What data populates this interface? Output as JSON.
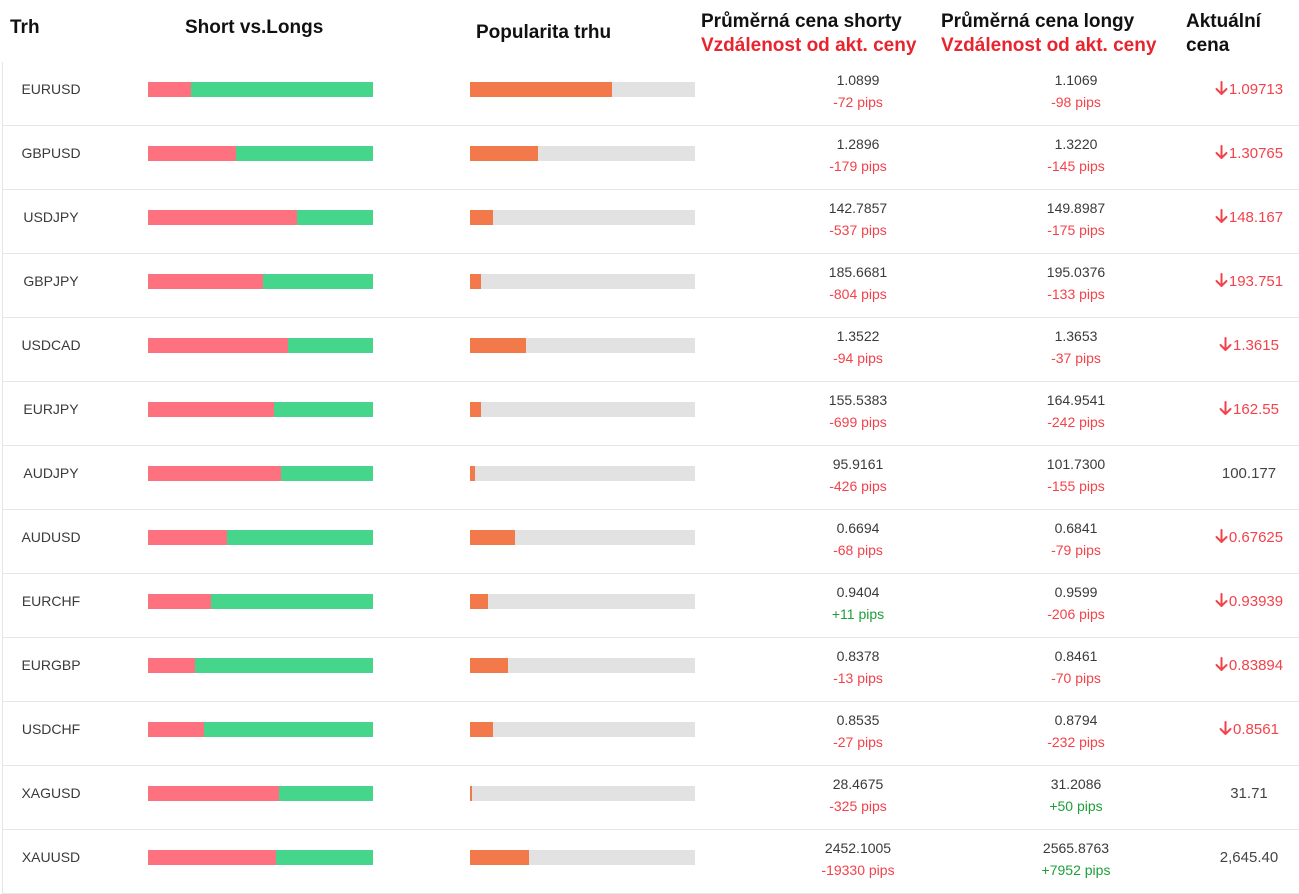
{
  "header": {
    "col_market": "Trh",
    "col_svl": "Short vs.Longs",
    "col_popularity": "Popularita trhu",
    "col_short_avg": "Průměrná cena shorty",
    "col_short_dist": "Vzdálenost od akt. ceny",
    "col_long_avg": "Průměrná cena longy",
    "col_long_dist": "Vzdálenost od akt. ceny",
    "col_price_line1": "Aktuální",
    "col_price_line2": "cena"
  },
  "colors": {
    "short": "#fe727f",
    "long": "#45d68c",
    "popularity": "#f1794a",
    "track": "#e2e2e2",
    "down": "#f3424a",
    "up": "#1d9f3a"
  },
  "rows": [
    {
      "pair": "EURUSD",
      "short_pct": 0.19,
      "popularity": 0.63,
      "short_avg": "1.0899",
      "short_dist": "-72 pips",
      "short_dist_sign": "neg",
      "long_avg": "1.1069",
      "long_dist": "-98 pips",
      "long_dist_sign": "neg",
      "price": "1.09713",
      "trend": "down"
    },
    {
      "pair": "GBPUSD",
      "short_pct": 0.39,
      "popularity": 0.3,
      "short_avg": "1.2896",
      "short_dist": "-179 pips",
      "short_dist_sign": "neg",
      "long_avg": "1.3220",
      "long_dist": "-145 pips",
      "long_dist_sign": "neg",
      "price": "1.30765",
      "trend": "down"
    },
    {
      "pair": "USDJPY",
      "short_pct": 0.66,
      "popularity": 0.1,
      "short_avg": "142.7857",
      "short_dist": "-537 pips",
      "short_dist_sign": "neg",
      "long_avg": "149.8987",
      "long_dist": "-175 pips",
      "long_dist_sign": "neg",
      "price": "148.167",
      "trend": "down"
    },
    {
      "pair": "GBPJPY",
      "short_pct": 0.51,
      "popularity": 0.05,
      "short_avg": "185.6681",
      "short_dist": "-804 pips",
      "short_dist_sign": "neg",
      "long_avg": "195.0376",
      "long_dist": "-133 pips",
      "long_dist_sign": "neg",
      "price": "193.751",
      "trend": "down"
    },
    {
      "pair": "USDCAD",
      "short_pct": 0.62,
      "popularity": 0.25,
      "short_avg": "1.3522",
      "short_dist": "-94 pips",
      "short_dist_sign": "neg",
      "long_avg": "1.3653",
      "long_dist": "-37 pips",
      "long_dist_sign": "neg",
      "price": "1.3615",
      "trend": "down"
    },
    {
      "pair": "EURJPY",
      "short_pct": 0.56,
      "popularity": 0.05,
      "short_avg": "155.5383",
      "short_dist": "-699 pips",
      "short_dist_sign": "neg",
      "long_avg": "164.9541",
      "long_dist": "-242 pips",
      "long_dist_sign": "neg",
      "price": "162.55",
      "trend": "down"
    },
    {
      "pair": "AUDJPY",
      "short_pct": 0.59,
      "popularity": 0.02,
      "short_avg": "95.9161",
      "short_dist": "-426 pips",
      "short_dist_sign": "neg",
      "long_avg": "101.7300",
      "long_dist": "-155 pips",
      "long_dist_sign": "neg",
      "price": "100.177",
      "trend": "none"
    },
    {
      "pair": "AUDUSD",
      "short_pct": 0.35,
      "popularity": 0.2,
      "short_avg": "0.6694",
      "short_dist": "-68 pips",
      "short_dist_sign": "neg",
      "long_avg": "0.6841",
      "long_dist": "-79 pips",
      "long_dist_sign": "neg",
      "price": "0.67625",
      "trend": "down"
    },
    {
      "pair": "EURCHF",
      "short_pct": 0.28,
      "popularity": 0.08,
      "short_avg": "0.9404",
      "short_dist": "+11 pips",
      "short_dist_sign": "pos",
      "long_avg": "0.9599",
      "long_dist": "-206 pips",
      "long_dist_sign": "neg",
      "price": "0.93939",
      "trend": "down"
    },
    {
      "pair": "EURGBP",
      "short_pct": 0.21,
      "popularity": 0.17,
      "short_avg": "0.8378",
      "short_dist": "-13 pips",
      "short_dist_sign": "neg",
      "long_avg": "0.8461",
      "long_dist": "-70 pips",
      "long_dist_sign": "neg",
      "price": "0.83894",
      "trend": "down"
    },
    {
      "pair": "USDCHF",
      "short_pct": 0.25,
      "popularity": 0.1,
      "short_avg": "0.8535",
      "short_dist": "-27 pips",
      "short_dist_sign": "neg",
      "long_avg": "0.8794",
      "long_dist": "-232 pips",
      "long_dist_sign": "neg",
      "price": "0.8561",
      "trend": "down"
    },
    {
      "pair": "XAGUSD",
      "short_pct": 0.58,
      "popularity": 0.01,
      "short_avg": "28.4675",
      "short_dist": "-325 pips",
      "short_dist_sign": "neg",
      "long_avg": "31.2086",
      "long_dist": "+50 pips",
      "long_dist_sign": "pos",
      "price": "31.71",
      "trend": "none"
    },
    {
      "pair": "XAUUSD",
      "short_pct": 0.57,
      "popularity": 0.26,
      "short_avg": "2452.1005",
      "short_dist": "-19330 pips",
      "short_dist_sign": "neg",
      "long_avg": "2565.8763",
      "long_dist": "+7952 pips",
      "long_dist_sign": "pos",
      "price": "2,645.40",
      "trend": "none"
    }
  ]
}
